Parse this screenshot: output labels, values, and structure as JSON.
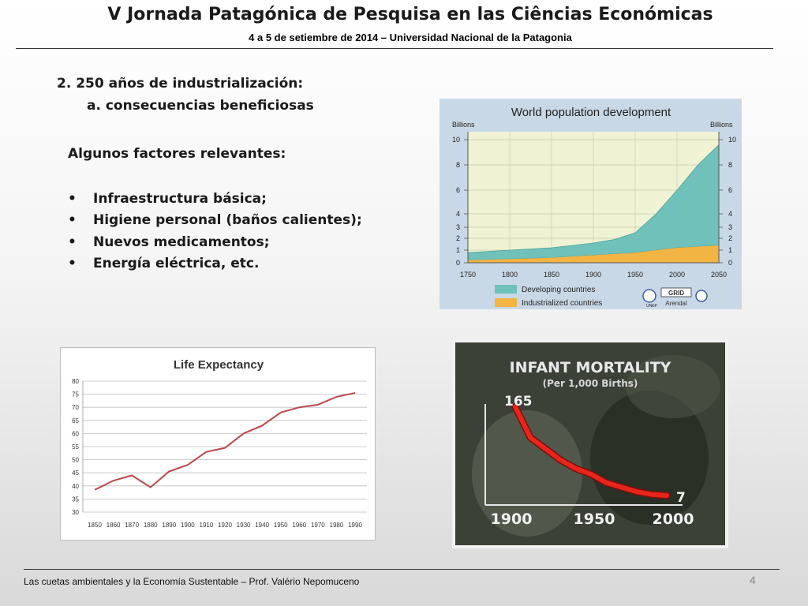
{
  "slide": {
    "title": "V Jornada Patagónica de Pesquisa en las Ciências Económicas",
    "subtitle": "4 a 5 de setiembre de 2014 – Universidad Nacional de la Patagonia",
    "heading": "2.    250 años de industrialización:",
    "subheading": "a. consecuencias beneficiosas",
    "factors_title": "Algunos factores relevantes:",
    "bullets": [
      "Infraestructura básica;",
      "Higiene personal (baños calientes);",
      "Nuevos medicamentos;",
      "Energía eléctrica, etc."
    ],
    "bullet_symbol": "•",
    "footer": "Las cuetas ambientales y  la Economía Sustentable – Prof. Valério Nepomuceno",
    "page_number": "4"
  },
  "chart_data": [
    {
      "type": "area",
      "title": "World population development",
      "ylabel_left": "Billions",
      "ylabel_right": "Billions",
      "x": [
        1750,
        1800,
        1850,
        1900,
        1925,
        1950,
        1975,
        2000,
        2025,
        2050
      ],
      "series": [
        {
          "name": "Industrialized countries",
          "color": "#f2b443",
          "values": [
            0.2,
            0.3,
            0.4,
            0.6,
            0.7,
            0.8,
            1.0,
            1.2,
            1.3,
            1.4
          ]
        },
        {
          "name": "Developing countries",
          "color": "#6fc1b9",
          "values": [
            0.6,
            0.7,
            0.8,
            1.0,
            1.2,
            1.7,
            3.0,
            4.8,
            6.7,
            8.2
          ]
        }
      ],
      "yticks": [
        0,
        1,
        2,
        3,
        4,
        6,
        8,
        10
      ],
      "xticks": [
        1750,
        1800,
        1850,
        1900,
        1950,
        2000,
        2050
      ],
      "ylim": [
        0,
        10
      ],
      "grid": true,
      "legend": "bottom",
      "logo_text": [
        "UNEP",
        "GRID",
        "Arendal"
      ]
    },
    {
      "type": "line",
      "title": "Life Expectancy",
      "x": [
        1850,
        1860,
        1870,
        1880,
        1890,
        1900,
        1910,
        1920,
        1930,
        1940,
        1950,
        1960,
        1970,
        1980,
        1990
      ],
      "values": [
        38.5,
        42,
        44,
        39.5,
        45.5,
        48,
        53,
        54.5,
        60,
        63,
        68,
        70,
        71,
        74,
        75.5
      ],
      "yticks": [
        30,
        35,
        40,
        45,
        50,
        55,
        60,
        65,
        70,
        75,
        80
      ],
      "ylim": [
        30,
        80
      ],
      "line_color": "#b8494c",
      "grid": true
    },
    {
      "type": "line",
      "title": "INFANT MORTALITY",
      "subtitle": "(Per 1,000 Births)",
      "x": [
        1900,
        1910,
        1920,
        1930,
        1940,
        1950,
        1960,
        1970,
        1980,
        1990,
        2000
      ],
      "values": [
        165,
        110,
        90,
        70,
        55,
        45,
        30,
        22,
        14,
        9,
        7
      ],
      "xticks": [
        "1900",
        "1950",
        "2000"
      ],
      "start_label": "165",
      "end_label": "7",
      "ylim": [
        0,
        180
      ],
      "line_color": "#e8251c"
    }
  ]
}
